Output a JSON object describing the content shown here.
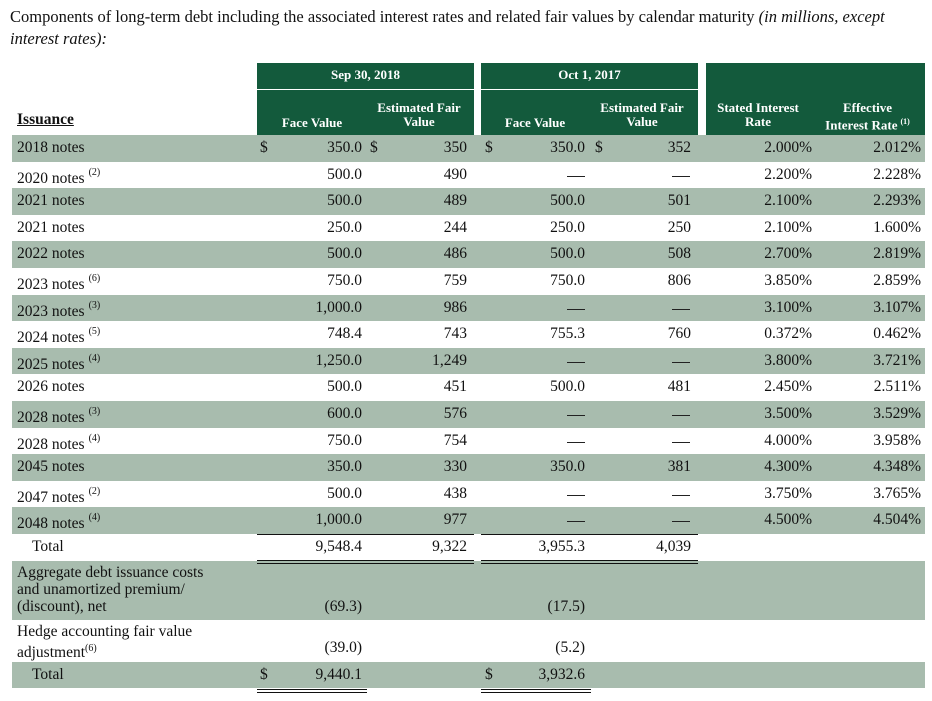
{
  "caption": {
    "text": "Components of long-term debt including the associated interest rates and related fair values by calendar maturity ",
    "italic": "(in millions, except interest rates):"
  },
  "headers": {
    "period1": "Sep 30, 2018",
    "period2": "Oct 1, 2017",
    "face_value": "Face Value",
    "est_fair_value_1": "Estimated Fair",
    "est_fair_value_2": "Value",
    "stated_1": "Stated Interest",
    "stated_2": "Rate",
    "effective_1": "Effective",
    "effective_2": "Interest Rate",
    "effective_sup": "(1)",
    "issuance": "Issuance"
  },
  "currency": "$",
  "dash": "—",
  "rows": [
    {
      "name": "2018 notes",
      "sup": "",
      "fv18": "350.0",
      "ef18": "350",
      "fv17": "350.0",
      "ef17": "352",
      "stated": "2.000%",
      "effective": "2.012%",
      "dollar": true
    },
    {
      "name": "2020 notes",
      "sup": "(2)",
      "fv18": "500.0",
      "ef18": "490",
      "fv17": "",
      "ef17": "",
      "stated": "2.200%",
      "effective": "2.228%"
    },
    {
      "name": "2021 notes",
      "sup": "",
      "fv18": "500.0",
      "ef18": "489",
      "fv17": "500.0",
      "ef17": "501",
      "stated": "2.100%",
      "effective": "2.293%"
    },
    {
      "name": "2021 notes",
      "sup": "",
      "fv18": "250.0",
      "ef18": "244",
      "fv17": "250.0",
      "ef17": "250",
      "stated": "2.100%",
      "effective": "1.600%"
    },
    {
      "name": "2022 notes",
      "sup": "",
      "fv18": "500.0",
      "ef18": "486",
      "fv17": "500.0",
      "ef17": "508",
      "stated": "2.700%",
      "effective": "2.819%"
    },
    {
      "name": "2023 notes",
      "sup": "(6)",
      "fv18": "750.0",
      "ef18": "759",
      "fv17": "750.0",
      "ef17": "806",
      "stated": "3.850%",
      "effective": "2.859%"
    },
    {
      "name": "2023 notes",
      "sup": "(3)",
      "fv18": "1,000.0",
      "ef18": "986",
      "fv17": "",
      "ef17": "",
      "stated": "3.100%",
      "effective": "3.107%"
    },
    {
      "name": "2024 notes",
      "sup": "(5)",
      "fv18": "748.4",
      "ef18": "743",
      "fv17": "755.3",
      "ef17": "760",
      "stated": "0.372%",
      "effective": "0.462%"
    },
    {
      "name": "2025 notes",
      "sup": "(4)",
      "fv18": "1,250.0",
      "ef18": "1,249",
      "fv17": "",
      "ef17": "",
      "stated": "3.800%",
      "effective": "3.721%"
    },
    {
      "name": "2026 notes",
      "sup": "",
      "fv18": "500.0",
      "ef18": "451",
      "fv17": "500.0",
      "ef17": "481",
      "stated": "2.450%",
      "effective": "2.511%"
    },
    {
      "name": "2028 notes",
      "sup": "(3)",
      "fv18": "600.0",
      "ef18": "576",
      "fv17": "",
      "ef17": "",
      "stated": "3.500%",
      "effective": "3.529%"
    },
    {
      "name": "2028 notes",
      "sup": "(4)",
      "fv18": "750.0",
      "ef18": "754",
      "fv17": "",
      "ef17": "",
      "stated": "4.000%",
      "effective": "3.958%"
    },
    {
      "name": "2045 notes",
      "sup": "",
      "fv18": "350.0",
      "ef18": "330",
      "fv17": "350.0",
      "ef17": "381",
      "stated": "4.300%",
      "effective": "4.348%"
    },
    {
      "name": "2047 notes",
      "sup": "(2)",
      "fv18": "500.0",
      "ef18": "438",
      "fv17": "",
      "ef17": "",
      "stated": "3.750%",
      "effective": "3.765%"
    },
    {
      "name": "2048 notes",
      "sup": "(4)",
      "fv18": "1,000.0",
      "ef18": "977",
      "fv17": "",
      "ef17": "",
      "stated": "4.500%",
      "effective": "4.504%"
    }
  ],
  "total": {
    "label": "Total",
    "fv18": "9,548.4",
    "ef18": "9,322",
    "fv17": "3,955.3",
    "ef17": "4,039"
  },
  "costs": {
    "line1": "Aggregate debt issuance costs",
    "line2": "and unamortized premium/",
    "line3": "(discount), net",
    "fv18": "(69.3)",
    "fv17": "(17.5)"
  },
  "hedge": {
    "line1": "Hedge accounting fair value",
    "line2": "adjustment",
    "sup": "(6)",
    "fv18": "(39.0)",
    "fv17": "(5.2)"
  },
  "grand_total": {
    "label": "Total",
    "fv18": "9,440.1",
    "fv17": "3,932.6"
  }
}
